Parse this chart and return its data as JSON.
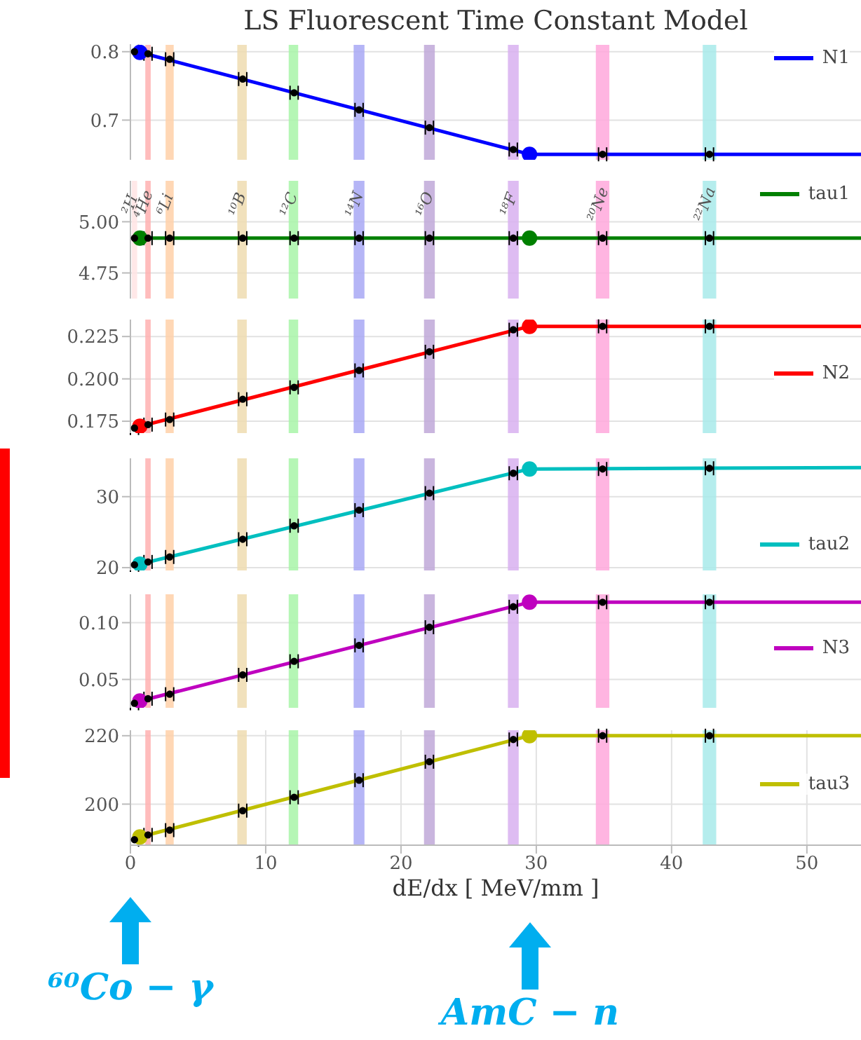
{
  "chart_data": [
    {
      "type": "line",
      "title": "LS Fluorescent Time Constant Model",
      "xlim": [
        0,
        54
      ],
      "xticks": [
        0,
        10,
        20,
        30,
        40,
        50
      ],
      "ylim": [
        0.642,
        0.81
      ],
      "yticks": [
        0.7,
        0.8
      ],
      "grid": true,
      "legend": "top right",
      "tick_labels": "y",
      "bands": [
        {
          "axis": "x",
          "from": 1.1,
          "to": 1.5,
          "color": "#ffb0b0"
        },
        {
          "axis": "x",
          "from": 2.6,
          "to": 3.2,
          "color": "#ffd0a8"
        },
        {
          "axis": "x",
          "from": 7.9,
          "to": 8.6,
          "color": "#eedcb0"
        },
        {
          "axis": "x",
          "from": 11.7,
          "to": 12.4,
          "color": "#a8f5a8"
        },
        {
          "axis": "x",
          "from": 16.5,
          "to": 17.3,
          "color": "#a8a8f5"
        },
        {
          "axis": "x",
          "from": 21.7,
          "to": 22.5,
          "color": "#c0a8d8"
        },
        {
          "axis": "x",
          "from": 27.9,
          "to": 28.7,
          "color": "#d8b0f0"
        },
        {
          "axis": "x",
          "from": 34.4,
          "to": 35.4,
          "color": "#ffa8dc"
        },
        {
          "axis": "x",
          "from": 42.3,
          "to": 43.3,
          "color": "#a8eaea"
        }
      ],
      "series": [
        {
          "name": "N1",
          "color": "#0000ff",
          "x": [
            0.7,
            29.5,
            54
          ],
          "values": [
            0.799,
            0.65,
            0.65
          ],
          "marker": "none"
        },
        {
          "type": "scatter",
          "color": "#0000ff",
          "x": [
            0.7,
            29.5
          ],
          "values": [
            0.799,
            0.65
          ],
          "marker": "circle"
        },
        {
          "type": "scatter",
          "color": "#000000",
          "x": [
            0.3,
            1.3,
            2.9,
            8.3,
            12.1,
            16.9,
            22.1,
            28.3,
            34.9,
            42.8
          ],
          "values": [
            0.8,
            0.797,
            0.789,
            0.76,
            0.74,
            0.715,
            0.689,
            0.657,
            0.65,
            0.65
          ],
          "xerrors": [
            0.3,
            0.3,
            0.3,
            0.3,
            0.3,
            0.3,
            0.3,
            0.3,
            0.3,
            0.3
          ],
          "marker": "circle"
        }
      ]
    },
    {
      "type": "line",
      "xlim": [
        0,
        54
      ],
      "xticks": [
        0,
        10,
        20,
        30,
        40,
        50
      ],
      "ylim": [
        4.625,
        5.2
      ],
      "yticks": [
        4.75,
        {
          "value": 5,
          "label": "5.00"
        }
      ],
      "grid": true,
      "legend": "top right",
      "tick_labels": "y",
      "bands": [
        {
          "axis": "x",
          "from": 0.1,
          "to": 0.5,
          "color": "#ffe4e4",
          "label": "²H"
        },
        {
          "axis": "x",
          "from": 1.1,
          "to": 1.5,
          "color": "#ffb0b0",
          "label": "⁴He"
        },
        {
          "axis": "x",
          "from": 2.6,
          "to": 3.2,
          "color": "#ffd0a8",
          "label": "⁶Li"
        },
        {
          "axis": "x",
          "from": 7.9,
          "to": 8.6,
          "color": "#eedcb0",
          "label": "¹⁰B"
        },
        {
          "axis": "x",
          "from": 11.7,
          "to": 12.4,
          "color": "#a8f5a8",
          "label": "¹²C"
        },
        {
          "axis": "x",
          "from": 16.5,
          "to": 17.3,
          "color": "#a8a8f5",
          "label": "¹⁴N"
        },
        {
          "axis": "x",
          "from": 21.7,
          "to": 22.5,
          "color": "#c0a8d8",
          "label": "¹⁶O"
        },
        {
          "axis": "x",
          "from": 27.9,
          "to": 28.7,
          "color": "#d8b0f0",
          "label": "¹⁸F"
        },
        {
          "axis": "x",
          "from": 34.4,
          "to": 35.4,
          "color": "#ffa8dc",
          "label": "²⁰Ne"
        },
        {
          "axis": "x",
          "from": 42.3,
          "to": 43.3,
          "color": "#a8eaea",
          "label": "²²Na"
        }
      ],
      "series": [
        {
          "name": "tau1",
          "color": "#008000",
          "x": [
            0.7,
            29.5,
            54
          ],
          "values": [
            4.92,
            4.92,
            4.92
          ],
          "marker": "none"
        },
        {
          "type": "scatter",
          "color": "#008000",
          "x": [
            0.7,
            29.5
          ],
          "values": [
            4.92,
            4.92
          ],
          "marker": "circle"
        },
        {
          "type": "scatter",
          "color": "#000000",
          "x": [
            0.3,
            1.3,
            2.9,
            8.3,
            12.1,
            16.9,
            22.1,
            28.3,
            34.9,
            42.8
          ],
          "values": [
            4.92,
            4.92,
            4.92,
            4.92,
            4.92,
            4.92,
            4.92,
            4.92,
            4.92,
            4.92
          ],
          "xerrors": [
            0.3,
            0.3,
            0.3,
            0.3,
            0.3,
            0.3,
            0.3,
            0.3,
            0.3,
            0.3
          ],
          "marker": "circle"
        }
      ]
    },
    {
      "type": "line",
      "xlim": [
        0,
        54
      ],
      "xticks": [
        0,
        10,
        20,
        30,
        40,
        50
      ],
      "ylim": [
        0.168,
        0.235
      ],
      "yticks": [
        0.175,
        {
          "value": 0.2,
          "label": "0.200"
        },
        0.225
      ],
      "grid": true,
      "legend": "right",
      "tick_labels": "y",
      "bands": [
        {
          "axis": "x",
          "from": 1.1,
          "to": 1.5,
          "color": "#ffb0b0"
        },
        {
          "axis": "x",
          "from": 2.6,
          "to": 3.2,
          "color": "#ffd0a8"
        },
        {
          "axis": "x",
          "from": 7.9,
          "to": 8.6,
          "color": "#eedcb0"
        },
        {
          "axis": "x",
          "from": 11.7,
          "to": 12.4,
          "color": "#a8f5a8"
        },
        {
          "axis": "x",
          "from": 16.5,
          "to": 17.3,
          "color": "#a8a8f5"
        },
        {
          "axis": "x",
          "from": 21.7,
          "to": 22.5,
          "color": "#c0a8d8"
        },
        {
          "axis": "x",
          "from": 27.9,
          "to": 28.7,
          "color": "#d8b0f0"
        },
        {
          "axis": "x",
          "from": 34.4,
          "to": 35.4,
          "color": "#ffa8dc"
        },
        {
          "axis": "x",
          "from": 42.3,
          "to": 43.3,
          "color": "#a8eaea"
        }
      ],
      "series": [
        {
          "name": "N2",
          "color": "#ff0000",
          "x": [
            0.7,
            29.5,
            54
          ],
          "values": [
            0.172,
            0.231,
            0.231
          ],
          "marker": "none"
        },
        {
          "type": "scatter",
          "color": "#ff0000",
          "x": [
            0.7,
            29.5
          ],
          "values": [
            0.172,
            0.231
          ],
          "marker": "circle"
        },
        {
          "type": "scatter",
          "color": "#000000",
          "x": [
            0.3,
            1.3,
            2.9,
            8.3,
            12.1,
            16.9,
            22.1,
            28.3,
            34.9,
            42.8
          ],
          "values": [
            0.171,
            0.173,
            0.176,
            0.188,
            0.195,
            0.205,
            0.216,
            0.229,
            0.231,
            0.231
          ],
          "xerrors": [
            0.3,
            0.3,
            0.3,
            0.3,
            0.3,
            0.3,
            0.3,
            0.3,
            0.3,
            0.3
          ],
          "marker": "circle"
        }
      ]
    },
    {
      "type": "line",
      "xlim": [
        0,
        54
      ],
      "xticks": [
        0,
        10,
        20,
        30,
        40,
        50
      ],
      "ylim": [
        19.6,
        35.4
      ],
      "yticks": [
        20,
        30
      ],
      "grid": true,
      "legend": "bottom right",
      "tick_labels": "y",
      "bands": [
        {
          "axis": "x",
          "from": 1.1,
          "to": 1.5,
          "color": "#ffb0b0"
        },
        {
          "axis": "x",
          "from": 2.6,
          "to": 3.2,
          "color": "#ffd0a8"
        },
        {
          "axis": "x",
          "from": 7.9,
          "to": 8.6,
          "color": "#eedcb0"
        },
        {
          "axis": "x",
          "from": 11.7,
          "to": 12.4,
          "color": "#a8f5a8"
        },
        {
          "axis": "x",
          "from": 16.5,
          "to": 17.3,
          "color": "#a8a8f5"
        },
        {
          "axis": "x",
          "from": 21.7,
          "to": 22.5,
          "color": "#c0a8d8"
        },
        {
          "axis": "x",
          "from": 27.9,
          "to": 28.7,
          "color": "#d8b0f0"
        },
        {
          "axis": "x",
          "from": 34.4,
          "to": 35.4,
          "color": "#ffa8dc"
        },
        {
          "axis": "x",
          "from": 42.3,
          "to": 43.3,
          "color": "#a8eaea"
        }
      ],
      "series": [
        {
          "name": "tau2",
          "color": "#00bfbf",
          "x": [
            0.7,
            29.5,
            54
          ],
          "values": [
            20.5,
            33.9,
            34.1
          ],
          "marker": "none"
        },
        {
          "type": "scatter",
          "color": "#00bfbf",
          "x": [
            0.7,
            29.5
          ],
          "values": [
            20.5,
            33.9
          ],
          "marker": "circle"
        },
        {
          "type": "scatter",
          "color": "#000000",
          "x": [
            0.3,
            1.3,
            2.9,
            8.3,
            12.1,
            16.9,
            22.1,
            28.3,
            34.9,
            42.8
          ],
          "values": [
            20.4,
            20.8,
            21.5,
            24,
            25.9,
            28.1,
            30.5,
            33.3,
            33.9,
            34
          ],
          "xerrors": [
            0.3,
            0.3,
            0.3,
            0.3,
            0.3,
            0.3,
            0.3,
            0.3,
            0.3,
            0.3
          ],
          "marker": "circle"
        }
      ]
    },
    {
      "type": "line",
      "xlim": [
        0,
        54
      ],
      "xticks": [
        0,
        10,
        20,
        30,
        40,
        50
      ],
      "ylim": [
        0.025,
        0.125
      ],
      "yticks": [
        0.05,
        {
          "value": 0.1,
          "label": "0.10"
        }
      ],
      "grid": true,
      "legend": "right",
      "tick_labels": "y",
      "bands": [
        {
          "axis": "x",
          "from": 1.1,
          "to": 1.5,
          "color": "#ffb0b0"
        },
        {
          "axis": "x",
          "from": 2.6,
          "to": 3.2,
          "color": "#ffd0a8"
        },
        {
          "axis": "x",
          "from": 7.9,
          "to": 8.6,
          "color": "#eedcb0"
        },
        {
          "axis": "x",
          "from": 11.7,
          "to": 12.4,
          "color": "#a8f5a8"
        },
        {
          "axis": "x",
          "from": 16.5,
          "to": 17.3,
          "color": "#a8a8f5"
        },
        {
          "axis": "x",
          "from": 21.7,
          "to": 22.5,
          "color": "#c0a8d8"
        },
        {
          "axis": "x",
          "from": 27.9,
          "to": 28.7,
          "color": "#d8b0f0"
        },
        {
          "axis": "x",
          "from": 34.4,
          "to": 35.4,
          "color": "#ffa8dc"
        },
        {
          "axis": "x",
          "from": 42.3,
          "to": 43.3,
          "color": "#a8eaea"
        }
      ],
      "series": [
        {
          "name": "N3",
          "color": "#bf00bf",
          "x": [
            0.7,
            29.5,
            54
          ],
          "values": [
            0.031,
            0.118,
            0.118
          ],
          "marker": "none"
        },
        {
          "type": "scatter",
          "color": "#bf00bf",
          "x": [
            0.7,
            29.5
          ],
          "values": [
            0.031,
            0.118
          ],
          "marker": "circle"
        },
        {
          "type": "scatter",
          "color": "#000000",
          "x": [
            0.3,
            1.3,
            2.9,
            8.3,
            12.1,
            16.9,
            22.1,
            28.3,
            34.9,
            42.8
          ],
          "values": [
            0.029,
            0.033,
            0.037,
            0.054,
            0.066,
            0.08,
            0.096,
            0.114,
            0.118,
            0.118
          ],
          "xerrors": [
            0.3,
            0.3,
            0.3,
            0.3,
            0.3,
            0.3,
            0.3,
            0.3,
            0.3,
            0.3
          ],
          "marker": "circle"
        }
      ]
    },
    {
      "type": "line",
      "xlabel": "dE/dx [ MeV/mm ]",
      "xlim": [
        0,
        54
      ],
      "xticks": [
        0,
        10,
        20,
        30,
        40,
        50
      ],
      "ylim": [
        188,
        221.6
      ],
      "yticks": [
        200,
        220
      ],
      "grid": true,
      "legend": "right",
      "annotations": [
        "⁶⁰Co − γ",
        "AmC − n"
      ],
      "bands": [
        {
          "axis": "x",
          "from": 1.1,
          "to": 1.5,
          "color": "#ffb0b0"
        },
        {
          "axis": "x",
          "from": 2.6,
          "to": 3.2,
          "color": "#ffd0a8"
        },
        {
          "axis": "x",
          "from": 7.9,
          "to": 8.6,
          "color": "#eedcb0"
        },
        {
          "axis": "x",
          "from": 11.7,
          "to": 12.4,
          "color": "#a8f5a8"
        },
        {
          "axis": "x",
          "from": 16.5,
          "to": 17.3,
          "color": "#a8a8f5"
        },
        {
          "axis": "x",
          "from": 21.7,
          "to": 22.5,
          "color": "#c0a8d8"
        },
        {
          "axis": "x",
          "from": 27.9,
          "to": 28.7,
          "color": "#d8b0f0"
        },
        {
          "axis": "x",
          "from": 34.4,
          "to": 35.4,
          "color": "#ffa8dc"
        },
        {
          "axis": "x",
          "from": 42.3,
          "to": 43.3,
          "color": "#a8eaea"
        }
      ],
      "series": [
        {
          "name": "tau3",
          "color": "#bfbf00",
          "x": [
            0.7,
            29.5,
            54
          ],
          "values": [
            190.4,
            220,
            220
          ],
          "marker": "none"
        },
        {
          "type": "scatter",
          "color": "#bfbf00",
          "x": [
            0.7,
            29.5
          ],
          "values": [
            190.4,
            220
          ],
          "marker": "circle"
        },
        {
          "type": "scatter",
          "color": "#000000",
          "x": [
            0.3,
            1.3,
            2.9,
            8.3,
            12.1,
            16.9,
            22.1,
            28.3,
            34.9,
            42.8
          ],
          "values": [
            189.6,
            191,
            192.4,
            198.1,
            202,
            207,
            212.4,
            218.9,
            220,
            220
          ],
          "xerrors": [
            0.3,
            0.3,
            0.3,
            0.3,
            0.3,
            0.3,
            0.3,
            0.3,
            0.3,
            0.3
          ],
          "marker": "circle"
        }
      ]
    }
  ]
}
